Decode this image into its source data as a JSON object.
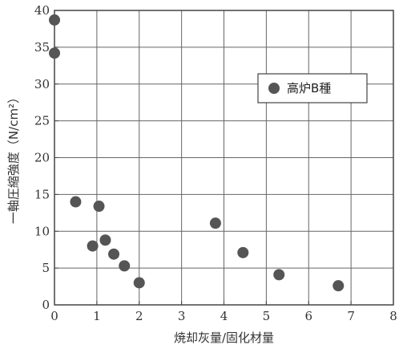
{
  "chart_data": {
    "type": "scatter",
    "xlabel": "焼却灰量/固化材量",
    "ylabel": "一軸圧縮強度（N/cm²）",
    "xlim": [
      0,
      8
    ],
    "ylim": [
      0,
      40
    ],
    "x_ticks": [
      "0",
      "1",
      "2",
      "3",
      "4",
      "5",
      "6",
      "7",
      "8"
    ],
    "y_ticks": [
      "0",
      "5",
      "10",
      "15",
      "20",
      "25",
      "30",
      "35",
      "40"
    ],
    "grid": true,
    "legend_position": "top-right",
    "series": [
      {
        "name": "高炉B種",
        "color": "#555555",
        "marker": "circle",
        "points": [
          {
            "x": 0.0,
            "y": 38.7
          },
          {
            "x": 0.0,
            "y": 34.2
          },
          {
            "x": 0.5,
            "y": 14.0
          },
          {
            "x": 1.05,
            "y": 13.4
          },
          {
            "x": 0.9,
            "y": 8.0
          },
          {
            "x": 1.2,
            "y": 8.8
          },
          {
            "x": 1.4,
            "y": 6.9
          },
          {
            "x": 1.65,
            "y": 5.3
          },
          {
            "x": 2.0,
            "y": 3.0
          },
          {
            "x": 3.8,
            "y": 11.1
          },
          {
            "x": 4.45,
            "y": 7.1
          },
          {
            "x": 5.3,
            "y": 4.1
          },
          {
            "x": 6.7,
            "y": 2.6
          }
        ]
      }
    ]
  }
}
